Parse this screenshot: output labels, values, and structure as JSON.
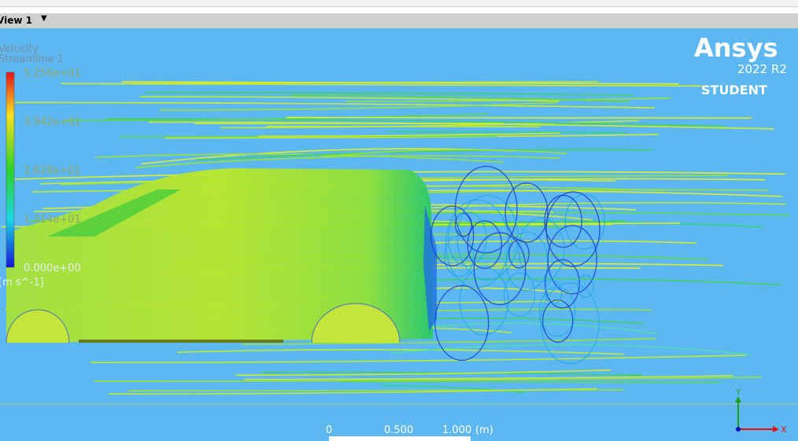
{
  "toolbar": {
    "view_label": "View 1"
  },
  "legend": {
    "variable": "Velocity",
    "object": "Streamline 1",
    "labels": [
      "5.256e+01",
      "3.942e+01",
      "2.628e+01",
      "1.314e+01",
      "0.000e+00"
    ],
    "unit": "[m s^-1]"
  },
  "logo": {
    "brand": "Ansys",
    "version": "2022 R2",
    "edition": "STUDENT"
  },
  "scale_bar": {
    "labels": [
      "0",
      "0.500",
      "1.000"
    ],
    "unit": "(m)"
  },
  "axes": {
    "y": "Y",
    "x": "X"
  }
}
